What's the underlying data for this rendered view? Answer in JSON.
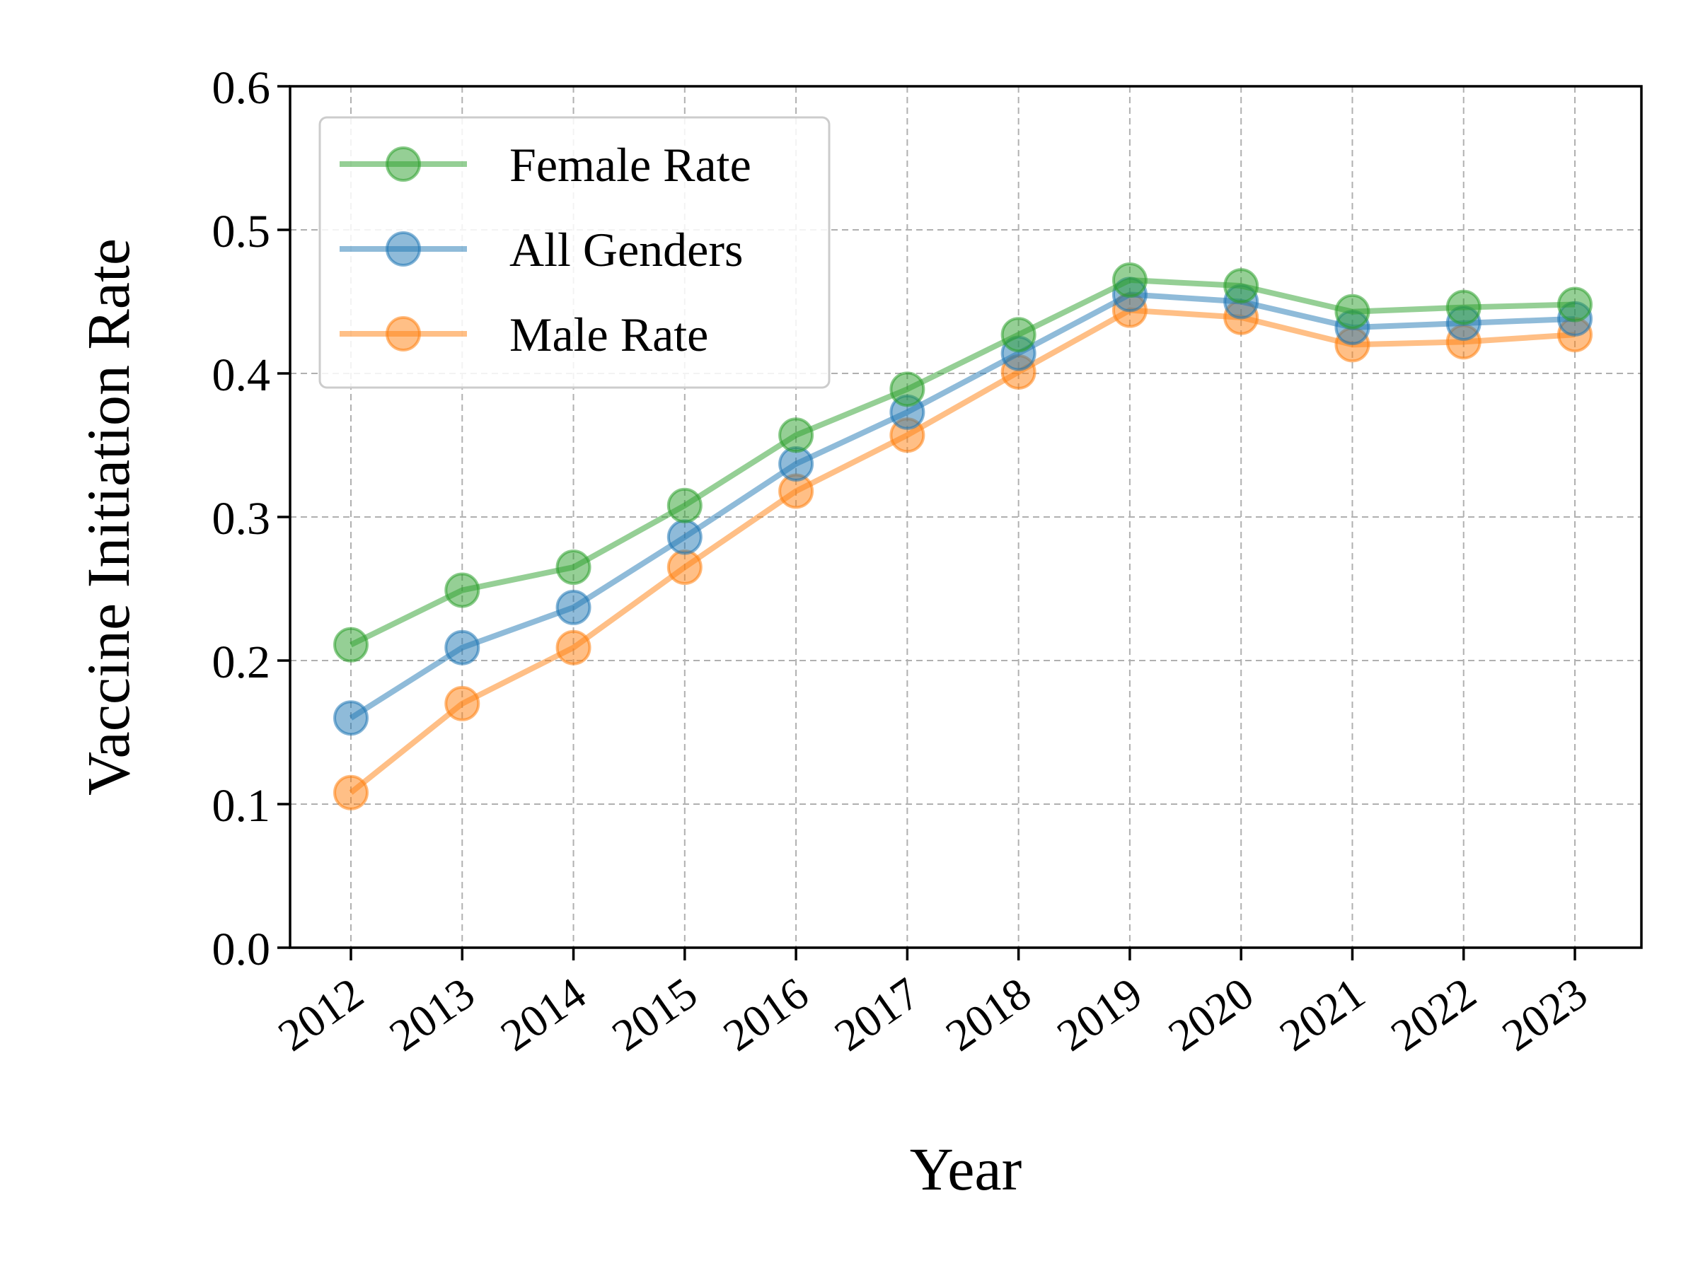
{
  "chart_data": {
    "type": "line",
    "title": "",
    "xlabel": "Year",
    "ylabel": "Vaccine Initiation Rate",
    "categories": [
      "2012",
      "2013",
      "2014",
      "2015",
      "2016",
      "2017",
      "2018",
      "2019",
      "2020",
      "2021",
      "2022",
      "2023"
    ],
    "ylim": [
      0.0,
      0.6
    ],
    "yticks": [
      "0.0",
      "0.1",
      "0.2",
      "0.3",
      "0.4",
      "0.5",
      "0.6"
    ],
    "grid": true,
    "legend_position": "top-left",
    "series": [
      {
        "name": "Female Rate",
        "color": "#2ca02c",
        "values": [
          0.211,
          0.249,
          0.265,
          0.308,
          0.357,
          0.389,
          0.427,
          0.465,
          0.461,
          0.443,
          0.446,
          0.448
        ]
      },
      {
        "name": "All Genders",
        "color": "#1f77b4",
        "values": [
          0.16,
          0.209,
          0.237,
          0.286,
          0.337,
          0.373,
          0.414,
          0.455,
          0.45,
          0.432,
          0.435,
          0.438
        ]
      },
      {
        "name": "Male Rate",
        "color": "#ff7f0e",
        "values": [
          0.108,
          0.17,
          0.209,
          0.265,
          0.318,
          0.357,
          0.401,
          0.444,
          0.439,
          0.42,
          0.422,
          0.427
        ]
      }
    ]
  }
}
